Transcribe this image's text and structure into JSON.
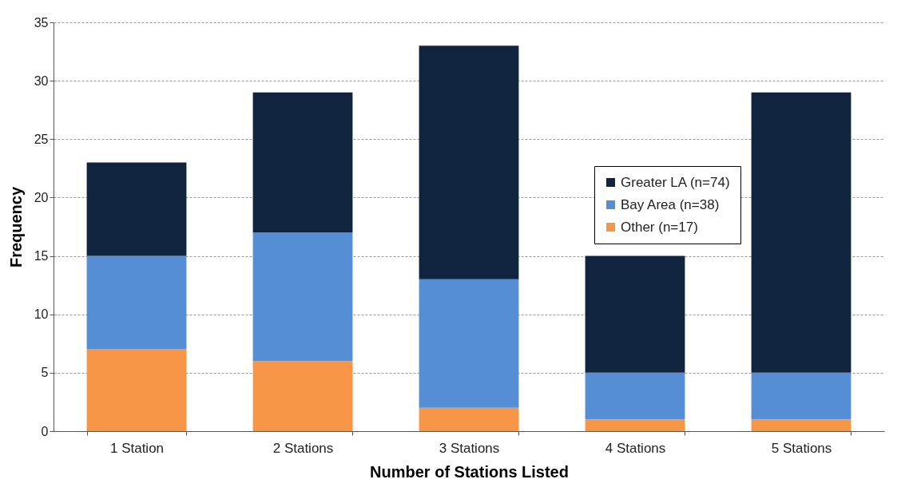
{
  "chart_data": {
    "type": "bar",
    "stacked": true,
    "xlabel": "Number of Stations Listed",
    "ylabel": "Frequency",
    "categories": [
      "1 Station",
      "2 Stations",
      "3 Stations",
      "4 Stations",
      "5 Stations"
    ],
    "series": [
      {
        "name": "Other (n=17)",
        "color": "#f79646",
        "values": [
          7,
          6,
          2,
          1,
          1
        ]
      },
      {
        "name": "Bay Area (n=38)",
        "color": "#558ed5",
        "values": [
          8,
          11,
          11,
          4,
          4
        ]
      },
      {
        "name": "Greater LA (n=74)",
        "color": "#10233f",
        "values": [
          8,
          12,
          20,
          10,
          24
        ]
      }
    ],
    "ylim": [
      0,
      35
    ],
    "yticks": [
      0,
      5,
      10,
      15,
      20,
      25,
      30,
      35
    ],
    "grid": "y",
    "legend": "top right"
  }
}
